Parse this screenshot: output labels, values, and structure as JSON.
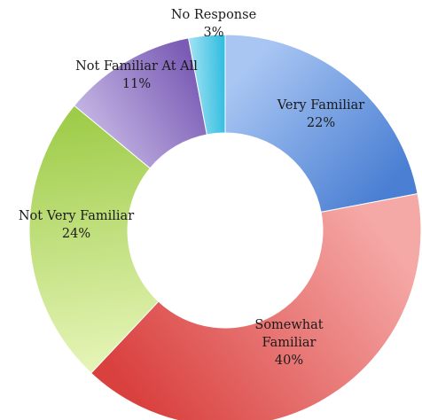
{
  "chart_data": {
    "type": "pie",
    "donut": true,
    "title": "",
    "start_angle_deg": 0,
    "direction": "clockwise",
    "slices": [
      {
        "label": "Very Familiar",
        "value": 22,
        "percent_label": "22%",
        "color_light": "#a9c6f3",
        "color_dark": "#4a7fd3"
      },
      {
        "label": "Somewhat Familiar",
        "label_lines": [
          "Somewhat",
          "Familiar"
        ],
        "value": 40,
        "percent_label": "40%",
        "color_light": "#f5a9a7",
        "color_dark": "#d9413f"
      },
      {
        "label": "Not Very Familiar",
        "value": 24,
        "percent_label": "24%",
        "color_light": "#e7f5b9",
        "color_dark": "#9ccb46"
      },
      {
        "label": "Not Familiar At All",
        "value": 11,
        "percent_label": "11%",
        "color_light": "#c8b9e6",
        "color_dark": "#7a5cb5"
      },
      {
        "label": "No Response",
        "value": 3,
        "percent_label": "3%",
        "color_light": "#a7e4f4",
        "color_dark": "#31bde0"
      }
    ]
  }
}
